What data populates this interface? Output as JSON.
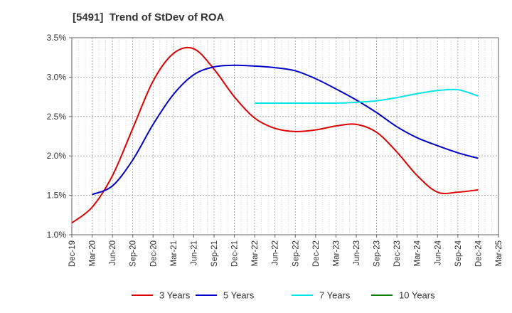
{
  "chart_data": {
    "type": "line",
    "title": "[5491]  Trend of StDev of ROA",
    "xlabel": "",
    "ylabel": "",
    "ylim": [
      1.0,
      3.5
    ],
    "y_ticks": [
      "1.0%",
      "1.5%",
      "2.0%",
      "2.5%",
      "3.0%",
      "3.5%"
    ],
    "x_ticks": [
      "Dec-19",
      "Mar-20",
      "Jun-20",
      "Sep-20",
      "Dec-20",
      "Mar-21",
      "Jun-21",
      "Sep-21",
      "Dec-21",
      "Mar-22",
      "Jun-22",
      "Sep-22",
      "Dec-22",
      "Mar-23",
      "Jun-23",
      "Sep-23",
      "Dec-23",
      "Mar-24",
      "Jun-24",
      "Sep-24",
      "Dec-24",
      "Mar-25"
    ],
    "grid": true,
    "legend_position": "bottom",
    "series": [
      {
        "name": "3 Years",
        "color": "#dd0000",
        "x": [
          "Dec-19",
          "Mar-20",
          "Jun-20",
          "Sep-20",
          "Dec-20",
          "Mar-21",
          "Jun-21",
          "Sep-21",
          "Dec-21",
          "Mar-22",
          "Jun-22",
          "Sep-22",
          "Dec-22",
          "Mar-23",
          "Jun-23",
          "Sep-23",
          "Dec-23",
          "Mar-24",
          "Jun-24",
          "Sep-24",
          "Dec-24"
        ],
        "values": [
          1.15,
          1.35,
          1.75,
          2.35,
          2.95,
          3.3,
          3.36,
          3.1,
          2.75,
          2.48,
          2.35,
          2.31,
          2.33,
          2.38,
          2.4,
          2.3,
          2.05,
          1.75,
          1.54,
          1.54,
          1.57
        ]
      },
      {
        "name": "5 Years",
        "color": "#0000cc",
        "x": [
          "Mar-20",
          "Jun-20",
          "Sep-20",
          "Dec-20",
          "Mar-21",
          "Jun-21",
          "Sep-21",
          "Dec-21",
          "Mar-22",
          "Jun-22",
          "Sep-22",
          "Dec-22",
          "Mar-23",
          "Jun-23",
          "Sep-23",
          "Dec-23",
          "Mar-24",
          "Jun-24",
          "Sep-24",
          "Dec-24"
        ],
        "values": [
          1.51,
          1.62,
          1.95,
          2.4,
          2.78,
          3.03,
          3.13,
          3.15,
          3.14,
          3.12,
          3.08,
          2.98,
          2.85,
          2.71,
          2.55,
          2.37,
          2.23,
          2.13,
          2.04,
          1.97
        ]
      },
      {
        "name": "7 Years",
        "color": "#00e5e5",
        "x": [
          "Mar-22",
          "Jun-22",
          "Sep-22",
          "Dec-22",
          "Mar-23",
          "Jun-23",
          "Sep-23",
          "Dec-23",
          "Mar-24",
          "Jun-24",
          "Sep-24",
          "Dec-24"
        ],
        "values": [
          2.67,
          2.67,
          2.67,
          2.67,
          2.67,
          2.68,
          2.7,
          2.74,
          2.79,
          2.83,
          2.84,
          2.76
        ]
      },
      {
        "name": "10 Years",
        "color": "#008000",
        "x": [],
        "values": []
      }
    ]
  }
}
